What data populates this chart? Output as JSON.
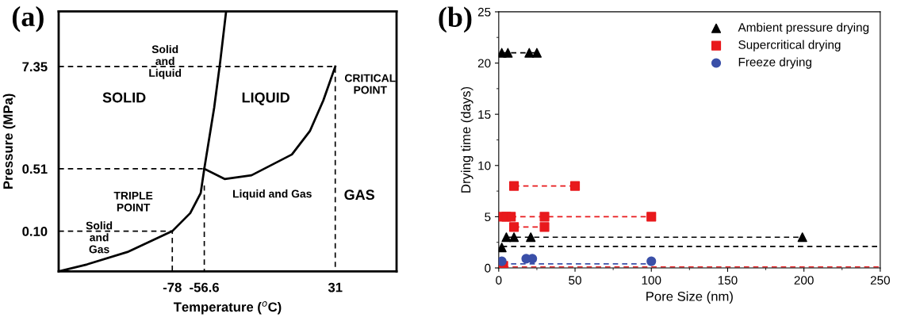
{
  "chart_data": [
    {
      "type": "line",
      "xlabel": "Temperature ($^{o}$C)",
      "ylabel": "Pressure (MPa)",
      "log": "y",
      "xlim": [
        -154,
        72
      ],
      "ylim": [
        0.035,
        31
      ],
      "xticks": [
        -78,
        -56.6,
        31
      ],
      "yticks": [
        {
          "value": 0.1,
          "label": "0.10"
        },
        0.51,
        7.35
      ],
      "grid": false,
      "legend": false,
      "series": [
        {
          "color": "#000000",
          "x": [
            -154,
            -135,
            -108,
            -78,
            -66,
            -59,
            -56.6,
            -50,
            -46,
            -42
          ],
          "values": [
            0.035,
            0.042,
            0.058,
            0.1,
            0.16,
            0.27,
            0.51,
            2.5,
            8.2,
            31
          ]
        },
        {
          "color": "#000000",
          "x": [
            -56.6,
            -43,
            -25,
            2,
            14,
            23,
            31
          ],
          "values": [
            0.51,
            0.39,
            0.43,
            0.74,
            1.36,
            3.03,
            7.35
          ]
        },
        {
          "color": "#000000",
          "line_style": "dashed",
          "x": [
            -154,
            31,
            31
          ],
          "values": [
            7.35,
            7.35,
            0.035
          ]
        },
        {
          "color": "#000000",
          "line_style": "dashed",
          "x": [
            -154,
            -56.6
          ],
          "values": [
            0.51,
            0.51
          ]
        },
        {
          "color": "#000000",
          "line_style": "dashed",
          "x": [
            -56.6,
            -56.6
          ],
          "values": [
            0.33,
            0.035
          ]
        },
        {
          "color": "#000000",
          "line_style": "dashed",
          "x": [
            -154,
            -78,
            -78
          ],
          "values": [
            0.1,
            0.1,
            0.035
          ]
        }
      ],
      "annotations": [
        "(a)",
        "SOLID",
        "LIQUID",
        "GAS",
        "CRITICAL\nPOINT",
        "Solid\nand\nLiquid",
        "TRIPLE\nPOINT",
        "Liquid and Gas",
        "Solid\nand\nGas"
      ]
    },
    {
      "type": "scatter",
      "xlabel": "Pore Size (nm)",
      "ylabel": "Drying time (days)",
      "xlim": [
        0,
        250
      ],
      "ylim": [
        0,
        25
      ],
      "xticks": [
        0,
        50,
        100,
        150,
        200,
        250
      ],
      "yticks": [
        0,
        5,
        10,
        15,
        20,
        25
      ],
      "grid": false,
      "legend": "top right",
      "series": [
        {
          "name": "Ambient pressure drying",
          "color": "#000000",
          "marker": "triangle",
          "x": [
            2,
            6,
            20,
            25,
            5,
            10,
            21,
            199,
            2
          ],
          "values": [
            21,
            21,
            21,
            21,
            3,
            3,
            3,
            3,
            2
          ]
        },
        {
          "name": "Supercritical drying",
          "color": "#e8191c",
          "marker": "square",
          "x": [
            10,
            50,
            2,
            5,
            8,
            30,
            100,
            10,
            30,
            3
          ],
          "values": [
            8,
            8,
            5,
            5,
            5,
            5,
            5,
            4,
            4,
            0.2
          ]
        },
        {
          "name": "Freeze drying",
          "color": "#3a4fa8",
          "marker": "circle",
          "x": [
            2,
            18,
            22,
            100
          ],
          "values": [
            0.65,
            0.9,
            0.9,
            0.65
          ]
        },
        {
          "type": "line",
          "color": "#000000",
          "line_style": "dashed",
          "x": [
            2,
            25
          ],
          "values": [
            21,
            21
          ]
        },
        {
          "type": "line",
          "color": "#000000",
          "line_style": "dashed",
          "x": [
            5,
            199
          ],
          "values": [
            3,
            3
          ]
        },
        {
          "type": "line",
          "color": "#000000",
          "line_style": "dashed",
          "x": [
            2,
            250
          ],
          "values": [
            2.1,
            2.1
          ]
        },
        {
          "type": "line",
          "color": "#e8191c",
          "line_style": "dashed",
          "x": [
            10,
            50
          ],
          "values": [
            8,
            8
          ]
        },
        {
          "type": "line",
          "color": "#e8191c",
          "line_style": "dashed",
          "x": [
            2,
            100
          ],
          "values": [
            5,
            5
          ]
        },
        {
          "type": "line",
          "color": "#e8191c",
          "line_style": "dashed",
          "x": [
            10,
            30
          ],
          "values": [
            4,
            4
          ]
        },
        {
          "type": "line",
          "color": "#e8191c",
          "line_style": "dashed",
          "x": [
            3,
            250
          ],
          "values": [
            0.1,
            0.1
          ]
        },
        {
          "type": "line",
          "color": "#3a4fa8",
          "line_style": "dashed",
          "x": [
            2,
            100
          ],
          "values": [
            0.4,
            0.4
          ]
        }
      ],
      "annotations": [
        "(b)"
      ]
    }
  ]
}
